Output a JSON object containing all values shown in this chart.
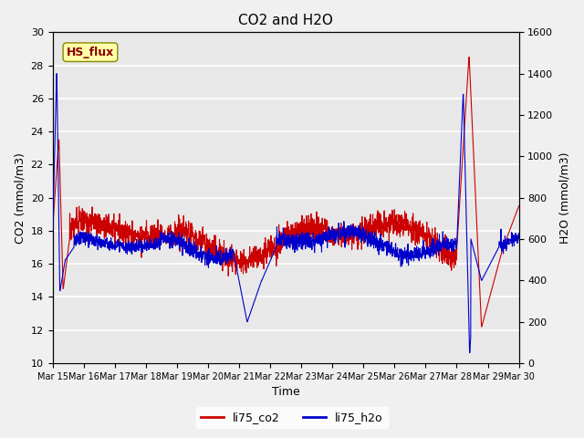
{
  "title": "CO2 and H2O",
  "xlabel": "Time",
  "ylabel_left": "CO2 (mmol/m3)",
  "ylabel_right": "H2O (mmol/m3)",
  "annotation": "HS_flux",
  "ylim_left": [
    10,
    30
  ],
  "ylim_right": [
    0,
    1600
  ],
  "yticks_left": [
    10,
    12,
    14,
    16,
    18,
    20,
    22,
    24,
    26,
    28,
    30
  ],
  "yticks_right": [
    0,
    200,
    400,
    600,
    800,
    1000,
    1200,
    1400,
    1600
  ],
  "xtick_labels": [
    "Mar 15",
    "Mar 16",
    "Mar 17",
    "Mar 18",
    "Mar 19",
    "Mar 20",
    "Mar 21",
    "Mar 22",
    "Mar 23",
    "Mar 24",
    "Mar 25",
    "Mar 26",
    "Mar 27",
    "Mar 28",
    "Mar 29",
    "Mar 30"
  ],
  "co2_color": "#cc0000",
  "h2o_color": "#0000cc",
  "background_color": "#e8e8e8",
  "grid_color": "#ffffff",
  "legend_co2": "li75_co2",
  "legend_h2o": "li75_h2o",
  "annotation_bg": "#ffffaa",
  "annotation_border": "#888800",
  "annotation_text_color": "#880000"
}
